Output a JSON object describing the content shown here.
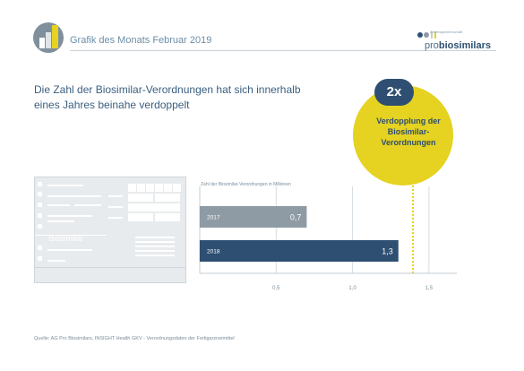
{
  "header": {
    "title": "Grafik des Monats Februar 2019",
    "logo_small": "Arbeitsgemeinschaft",
    "logo_pro": "pro",
    "logo_bio": "biosimilars"
  },
  "headline": "Die Zahl der Biosimilar-Verordnungen hat sich innerhalb eines Jahres beinahe verdoppelt",
  "badge": {
    "factor": "2x",
    "text": "Verdopplung der Biosimilar-Verordnungen"
  },
  "form": {
    "label": "Biosimilar"
  },
  "colors": {
    "bar_2017": "#8e9ba5",
    "bar_2018": "#2e4f71",
    "accent": "#e5d221",
    "navy": "#2e4f71"
  },
  "chart_data": {
    "type": "bar",
    "orientation": "horizontal",
    "title": "Zahl der Biosimilar-Verordnungen in Millionen",
    "categories": [
      "2017",
      "2018"
    ],
    "values": [
      0.7,
      1.3
    ],
    "value_labels": [
      "0,7",
      "1,3"
    ],
    "x_ticks": [
      "0,5",
      "1,0",
      "1,5"
    ],
    "tick_values": [
      0.5,
      1.0,
      1.5
    ],
    "xlim": [
      0,
      1.7
    ],
    "grid": true
  },
  "source": "Quelle: AG Pro Biosimilars, INSIGHT Health GKV - Verordnungsdaten der Fertigarzneimittel"
}
